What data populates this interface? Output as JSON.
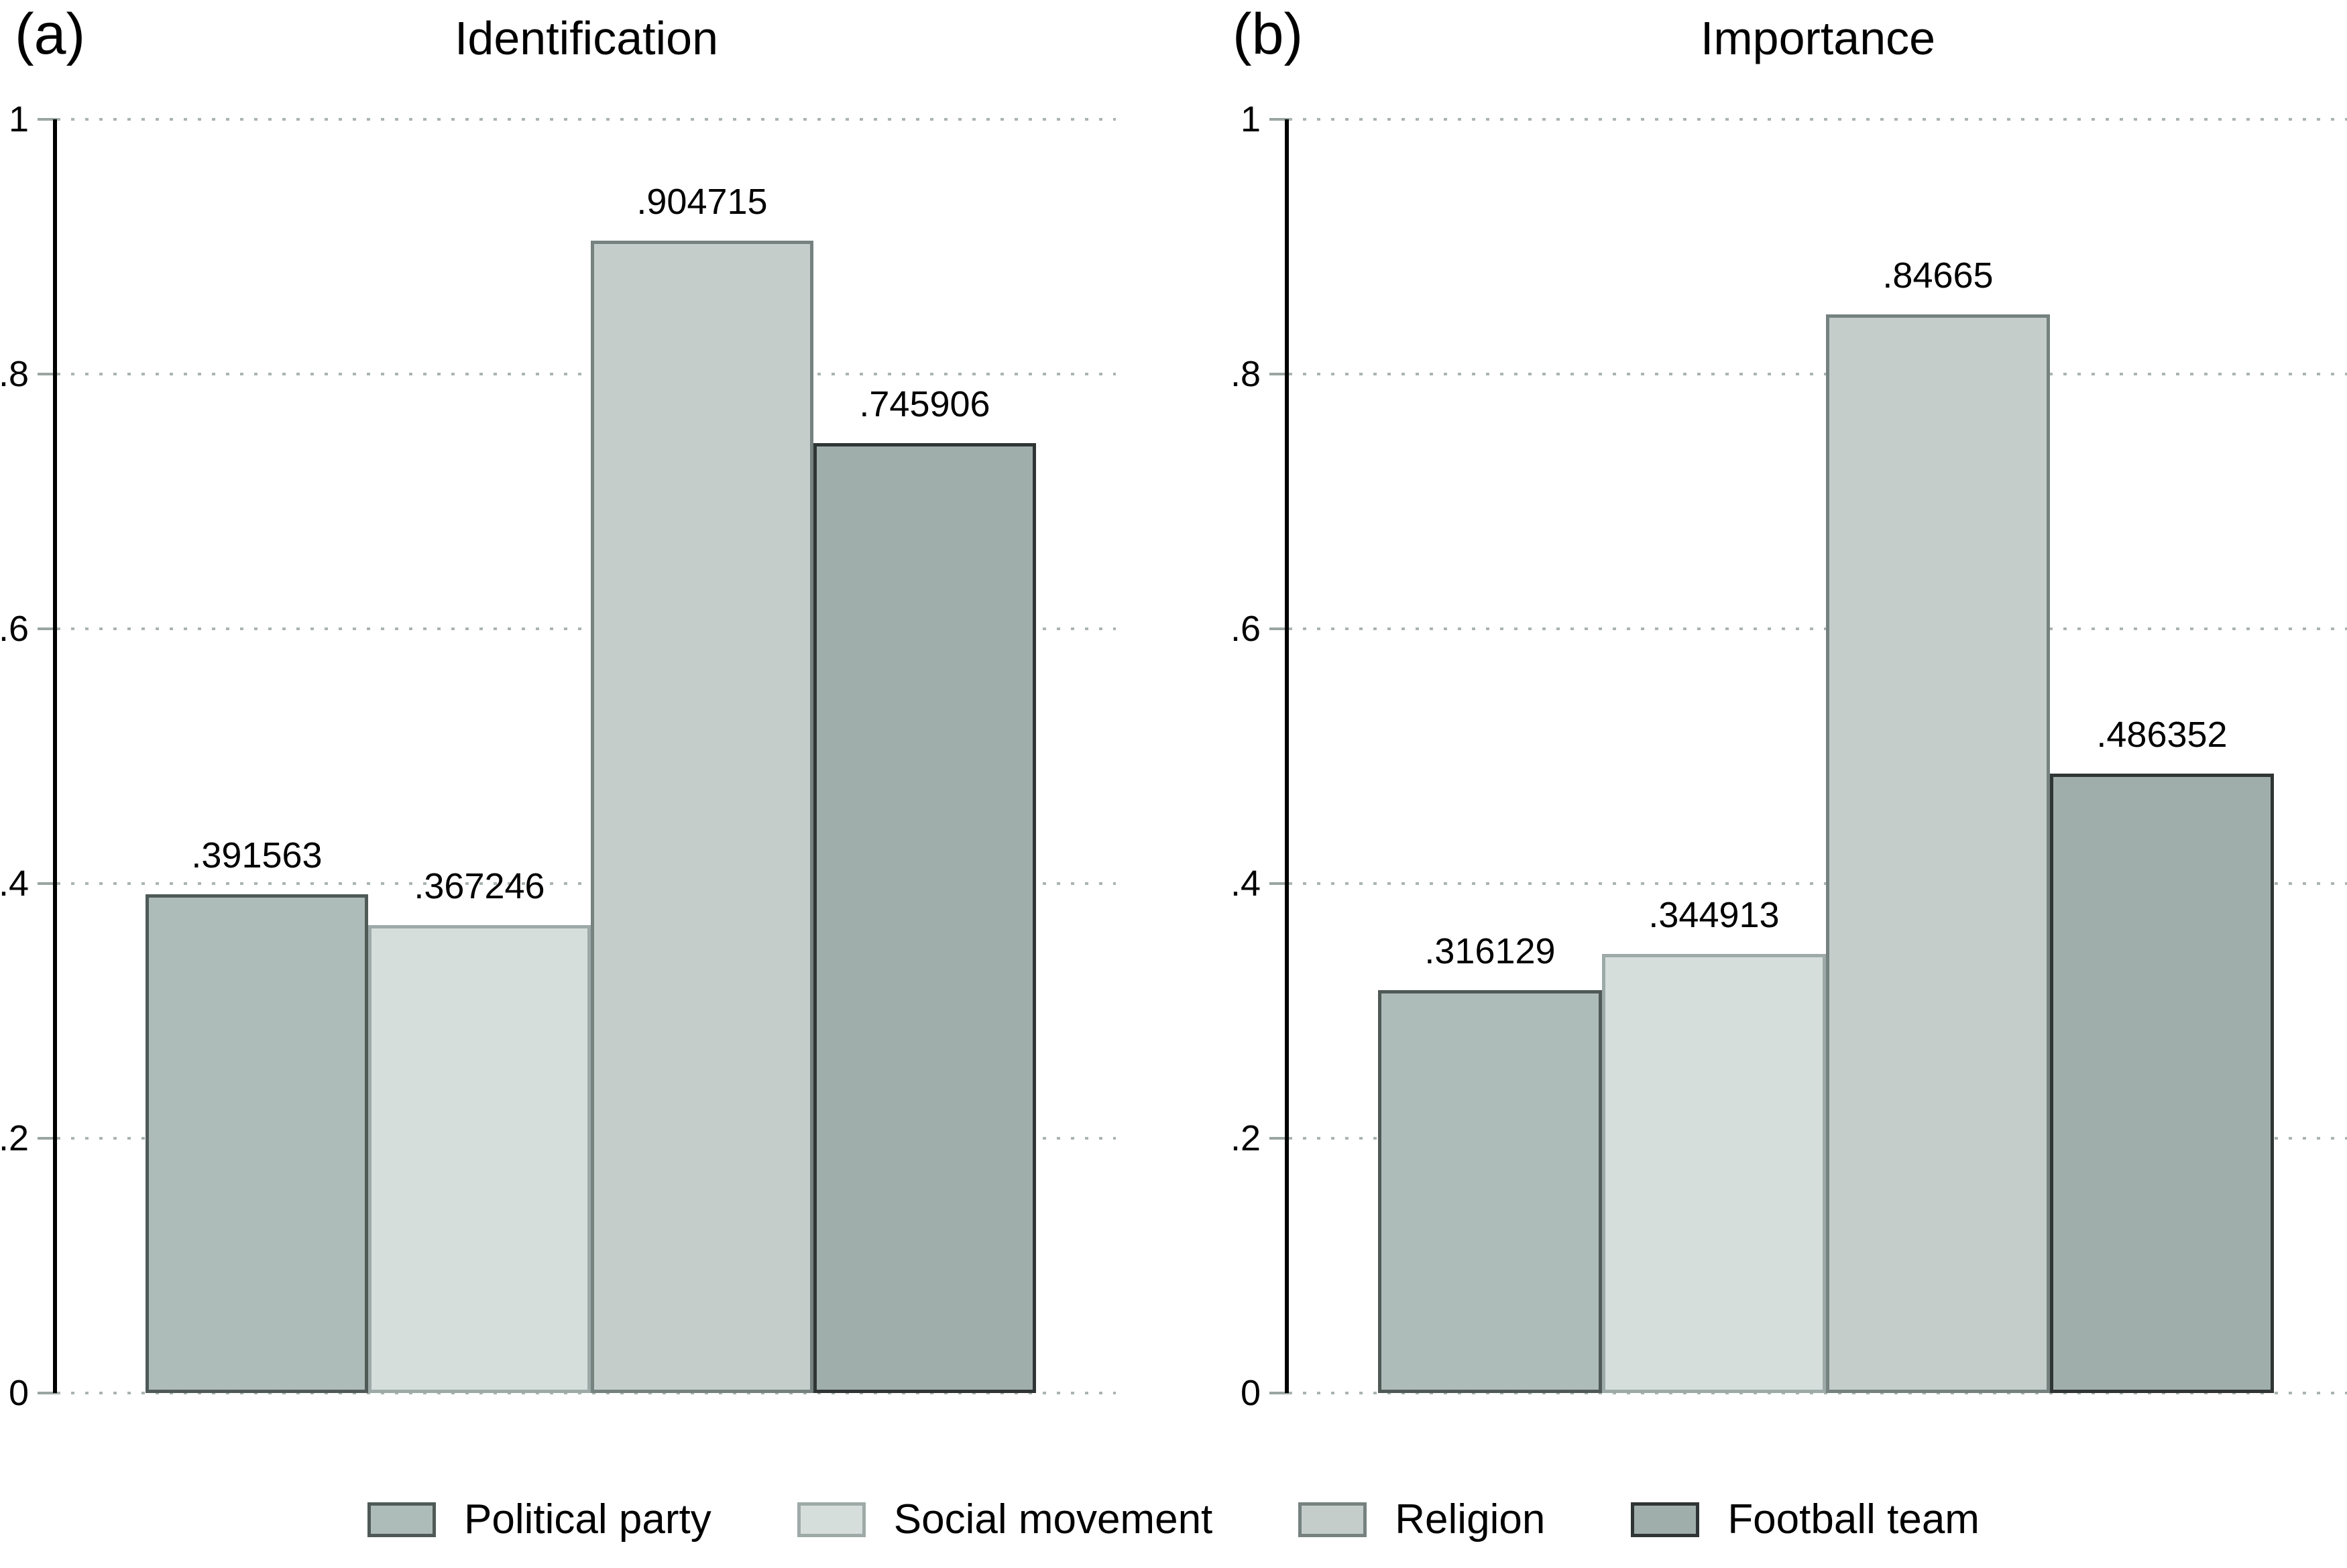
{
  "figure": {
    "panel_a_letter": "(a)",
    "panel_a_title": "Identification",
    "panel_b_letter": "(b)",
    "panel_b_title": "Importance"
  },
  "chart_data": [
    {
      "type": "bar",
      "panel_letter": "(a)",
      "title": "Identification",
      "categories": [
        "Political party",
        "Social movement",
        "Religion",
        "Football team"
      ],
      "values": [
        0.391563,
        0.367246,
        0.904715,
        0.745906
      ],
      "value_labels": [
        ".391563",
        ".367246",
        ".904715",
        ".745906"
      ],
      "ylim": [
        0,
        1
      ],
      "ytick_values": [
        0,
        0.2,
        0.4,
        0.6,
        0.8,
        1
      ],
      "ytick_labels": [
        "0",
        ".2",
        ".4",
        ".6",
        ".8",
        "1"
      ],
      "grid": "horizontal-dotted",
      "xlabel": "",
      "ylabel": ""
    },
    {
      "type": "bar",
      "panel_letter": "(b)",
      "title": "Importance",
      "categories": [
        "Political party",
        "Social movement",
        "Religion",
        "Football team"
      ],
      "values": [
        0.316129,
        0.344913,
        0.84665,
        0.486352
      ],
      "value_labels": [
        ".316129",
        ".344913",
        ".84665",
        ".486352"
      ],
      "ylim": [
        0,
        1
      ],
      "ytick_values": [
        0,
        0.2,
        0.4,
        0.6,
        0.8,
        1
      ],
      "ytick_labels": [
        "0",
        ".2",
        ".4",
        ".6",
        ".8",
        "1"
      ],
      "grid": "horizontal-dotted",
      "xlabel": "",
      "ylabel": ""
    }
  ],
  "legend": {
    "position": "bottom-center",
    "items": [
      {
        "label": "Political party",
        "fill": "#adbcb8",
        "border": "#4f5a57"
      },
      {
        "label": "Social movement",
        "fill": "#d6dedb",
        "border": "#9daaa7"
      },
      {
        "label": "Religion",
        "fill": "#c4cdca",
        "border": "#75827f"
      },
      {
        "label": "Football team",
        "fill": "#a0aeab",
        "border": "#2f3534"
      }
    ]
  },
  "colors": {
    "background": "#ffffff",
    "axis": "#000000",
    "tick": "#9aa5a1",
    "grid": "#aab4b1",
    "text": "#000000"
  }
}
